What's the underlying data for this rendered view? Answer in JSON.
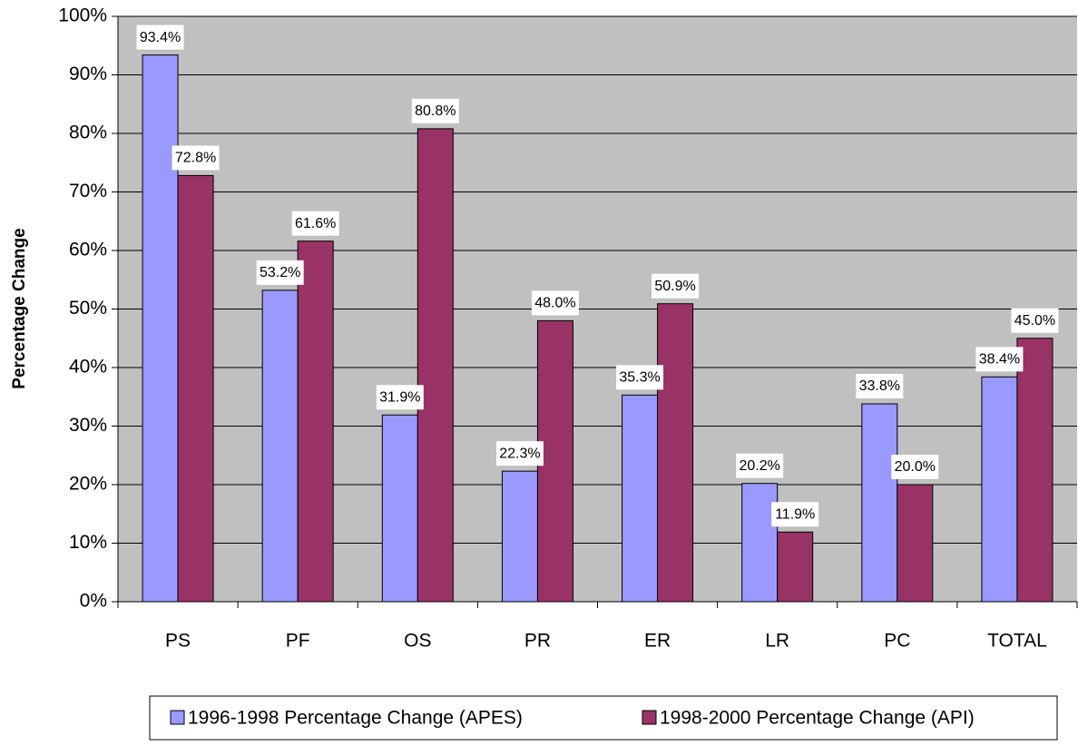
{
  "chart_data": {
    "type": "bar",
    "y_label": "Percentage Change",
    "categories": [
      "PS",
      "PF",
      "OS",
      "PR",
      "ER",
      "LR",
      "PC",
      "TOTAL"
    ],
    "series": [
      {
        "name": "1996-1998 Percentage Change (APES)",
        "color": "#9999ff",
        "values": [
          93.4,
          53.2,
          31.9,
          22.3,
          35.3,
          20.2,
          33.8,
          38.4
        ],
        "value_labels": [
          "93.4%",
          "53.2%",
          "31.9%",
          "22.3%",
          "35.3%",
          "20.2%",
          "33.8%",
          "38.4%"
        ]
      },
      {
        "name": "1998-2000 Percentage Change (API)",
        "color": "#993366",
        "values": [
          72.8,
          61.6,
          80.8,
          48.0,
          50.9,
          11.9,
          20.0,
          45.0
        ],
        "value_labels": [
          "72.8%",
          "61.6%",
          "80.8%",
          "48.0%",
          "50.9%",
          "11.9%",
          "20.0%",
          "45.0%"
        ]
      }
    ],
    "ylim": [
      0,
      100
    ],
    "yticks": [
      {
        "value": 0,
        "label": "0%"
      },
      {
        "value": 10,
        "label": "10%"
      },
      {
        "value": 20,
        "label": "20%"
      },
      {
        "value": 30,
        "label": "30%"
      },
      {
        "value": 40,
        "label": "40%"
      },
      {
        "value": 50,
        "label": "50%"
      },
      {
        "value": 60,
        "label": "60%"
      },
      {
        "value": 70,
        "label": "70%"
      },
      {
        "value": 80,
        "label": "80%"
      },
      {
        "value": 90,
        "label": "90%"
      },
      {
        "value": 100,
        "label": "100%"
      }
    ],
    "grid": true,
    "legend": "bottom"
  }
}
